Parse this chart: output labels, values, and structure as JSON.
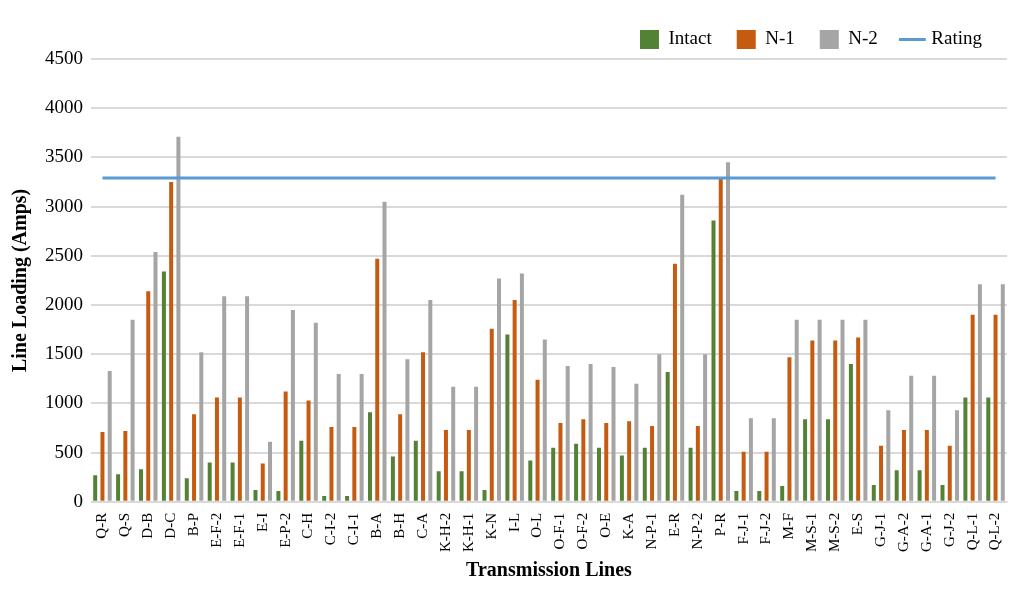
{
  "chart_data": {
    "type": "bar",
    "xlabel": "Transmission Lines",
    "ylabel": "Line Loading (Amps)",
    "categories": [
      "Q-R",
      "Q-S",
      "D-B",
      "D-C",
      "B-P",
      "E-F-2",
      "E-F-1",
      "E-I",
      "E-P-2",
      "C-H",
      "C-I-2",
      "C-I-1",
      "B-A",
      "B-H",
      "C-A",
      "K-H-2",
      "K-H-1",
      "K-N",
      "I-L",
      "O-L",
      "O-F-1",
      "O-F-2",
      "O-E",
      "K-A",
      "N-P-1",
      "E-R",
      "N-P-2",
      "P-R",
      "F-J-1",
      "F-J-2",
      "M-F",
      "M-S-1",
      "M-S-2",
      "E-S",
      "G-J-1",
      "G-A-2",
      "G-A-1",
      "G-J-2",
      "Q-L-1",
      "Q-L-2"
    ],
    "series": [
      {
        "name": "Intact",
        "color": "#548235",
        "values": [
          270,
          280,
          330,
          2340,
          240,
          400,
          400,
          120,
          110,
          620,
          60,
          60,
          910,
          460,
          620,
          310,
          310,
          120,
          1700,
          420,
          550,
          590,
          550,
          470,
          550,
          1320,
          550,
          2860,
          110,
          110,
          160,
          840,
          840,
          1400,
          170,
          320,
          320,
          170,
          1060,
          1060
        ]
      },
      {
        "name": "N-1",
        "color": "#c55a11",
        "values": [
          710,
          720,
          2140,
          3250,
          890,
          1060,
          1060,
          390,
          1120,
          1030,
          760,
          760,
          2470,
          890,
          1520,
          730,
          730,
          1760,
          2050,
          1240,
          800,
          840,
          800,
          820,
          770,
          2420,
          770,
          3280,
          510,
          510,
          1470,
          1640,
          1640,
          1670,
          570,
          730,
          730,
          570,
          1900,
          1900
        ]
      },
      {
        "name": "N-2",
        "color": "#a5a5a5",
        "values": [
          1330,
          1850,
          2540,
          3710,
          1520,
          2090,
          2090,
          610,
          1950,
          1820,
          1300,
          1300,
          3050,
          1450,
          2050,
          1170,
          1170,
          2270,
          2320,
          1650,
          1380,
          1400,
          1370,
          1200,
          1500,
          3120,
          1500,
          3450,
          850,
          850,
          1850,
          1850,
          1850,
          1850,
          930,
          1280,
          1280,
          930,
          2210,
          2210
        ]
      },
      {
        "name": "Rating",
        "type": "line",
        "color": "#5b9bd5",
        "values": [
          3290,
          3290,
          3290,
          3290,
          3290,
          3290,
          3290,
          3290,
          3290,
          3290,
          3290,
          3290,
          3290,
          3290,
          3290,
          3290,
          3290,
          3290,
          3290,
          3290,
          3290,
          3290,
          3290,
          3290,
          3290,
          3290,
          3290,
          3290,
          3290,
          3290,
          3290,
          3290,
          3290,
          3290,
          3290,
          3290,
          3290,
          3290,
          3290,
          3290
        ]
      }
    ],
    "ylim": [
      0,
      4500
    ],
    "yticks": [
      0,
      500,
      1000,
      1500,
      2000,
      2500,
      3000,
      3500,
      4000,
      4500
    ],
    "grid": "y",
    "legend": "top right",
    "marker": "none"
  }
}
